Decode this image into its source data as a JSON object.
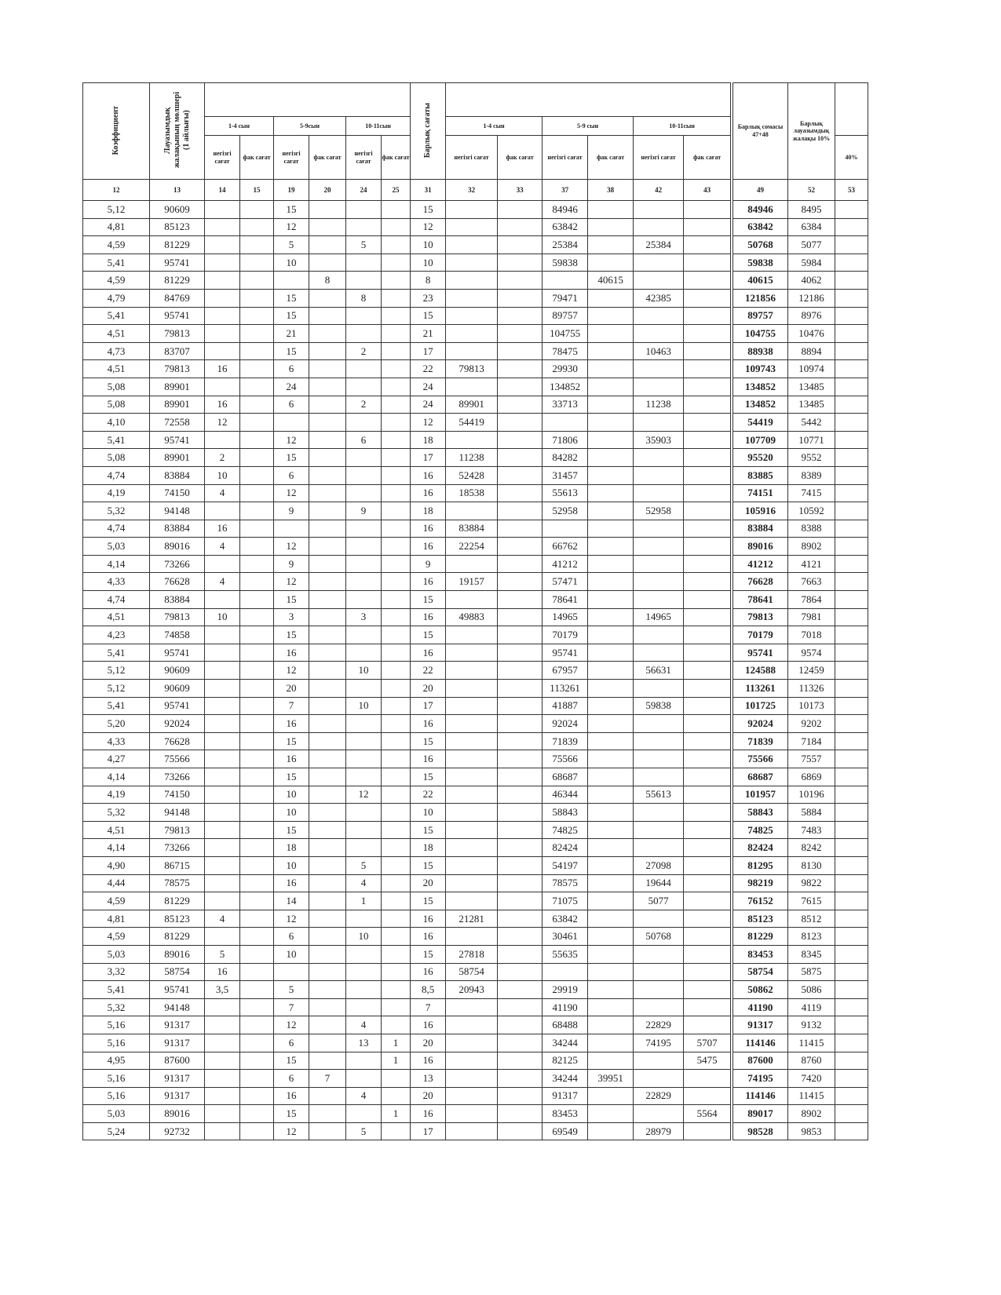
{
  "headers": {
    "coefficient": "Коэффициент",
    "salary": "Лауазымдық жалақының мөлшері (1 айлығы)",
    "grade_1_4": "1-4 сын",
    "grade_5_9": "5-9сын",
    "grade_10_11": "10-11сын",
    "base_hours": "негізгі сағат",
    "fact_hours": "фак сағат",
    "total_hours": "Барлық сағаты",
    "sum_grade_1_4": "1-4 сын",
    "sum_grade_5_9": "5-9 сын",
    "sum_grade_10_11": "10-11сын",
    "total_sum": "Барлық сомасы 47+48",
    "total_salary": "Барлық лауазымдық жалақы 10%",
    "percent_40": "40%"
  },
  "column_numbers": [
    12,
    13,
    14,
    15,
    19,
    20,
    24,
    25,
    31,
    32,
    33,
    37,
    38,
    42,
    43,
    49,
    52,
    53
  ],
  "rows": [
    [
      "5,12",
      90609,
      null,
      null,
      15,
      null,
      null,
      null,
      15,
      null,
      null,
      84946,
      null,
      null,
      null,
      84946,
      8495,
      null
    ],
    [
      "4,81",
      85123,
      null,
      null,
      12,
      null,
      null,
      null,
      12,
      null,
      null,
      63842,
      null,
      null,
      null,
      63842,
      6384,
      null
    ],
    [
      "4,59",
      81229,
      null,
      null,
      5,
      null,
      5,
      null,
      10,
      null,
      null,
      25384,
      null,
      25384,
      null,
      50768,
      5077,
      null
    ],
    [
      "5,41",
      95741,
      null,
      null,
      10,
      null,
      null,
      null,
      10,
      null,
      null,
      59838,
      null,
      null,
      null,
      59838,
      5984,
      null
    ],
    [
      "4,59",
      81229,
      null,
      null,
      null,
      8,
      null,
      null,
      8,
      null,
      null,
      null,
      40615,
      null,
      null,
      40615,
      4062,
      null
    ],
    [
      "4,79",
      84769,
      null,
      null,
      15,
      null,
      8,
      null,
      23,
      null,
      null,
      79471,
      null,
      42385,
      null,
      121856,
      12186,
      null
    ],
    [
      "5,41",
      95741,
      null,
      null,
      15,
      null,
      null,
      null,
      15,
      null,
      null,
      89757,
      null,
      null,
      null,
      89757,
      8976,
      null
    ],
    [
      "4,51",
      79813,
      null,
      null,
      21,
      null,
      null,
      null,
      21,
      null,
      null,
      104755,
      null,
      null,
      null,
      104755,
      10476,
      null
    ],
    [
      "4,73",
      83707,
      null,
      null,
      15,
      null,
      2,
      null,
      17,
      null,
      null,
      78475,
      null,
      10463,
      null,
      88938,
      8894,
      null
    ],
    [
      "4,51",
      79813,
      16,
      null,
      6,
      null,
      null,
      null,
      22,
      79813,
      null,
      29930,
      null,
      null,
      null,
      109743,
      10974,
      null
    ],
    [
      "5,08",
      89901,
      null,
      null,
      24,
      null,
      null,
      null,
      24,
      null,
      null,
      134852,
      null,
      null,
      null,
      134852,
      13485,
      null
    ],
    [
      "5,08",
      89901,
      16,
      null,
      6,
      null,
      2,
      null,
      24,
      89901,
      null,
      33713,
      null,
      11238,
      null,
      134852,
      13485,
      null
    ],
    [
      "4,10",
      72558,
      12,
      null,
      null,
      null,
      null,
      null,
      12,
      54419,
      null,
      null,
      null,
      null,
      null,
      54419,
      5442,
      null
    ],
    [
      "5,41",
      95741,
      null,
      null,
      12,
      null,
      6,
      null,
      18,
      null,
      null,
      71806,
      null,
      35903,
      null,
      107709,
      10771,
      null
    ],
    [
      "5,08",
      89901,
      2,
      null,
      15,
      null,
      null,
      null,
      17,
      11238,
      null,
      84282,
      null,
      null,
      null,
      95520,
      9552,
      null
    ],
    [
      "4,74",
      83884,
      10,
      null,
      6,
      null,
      null,
      null,
      16,
      52428,
      null,
      31457,
      null,
      null,
      null,
      83885,
      8389,
      null
    ],
    [
      "4,19",
      74150,
      4,
      null,
      12,
      null,
      null,
      null,
      16,
      18538,
      null,
      55613,
      null,
      null,
      null,
      74151,
      7415,
      null
    ],
    [
      "5,32",
      94148,
      null,
      null,
      9,
      null,
      9,
      null,
      18,
      null,
      null,
      52958,
      null,
      52958,
      null,
      105916,
      10592,
      null
    ],
    [
      "4,74",
      83884,
      16,
      null,
      null,
      null,
      null,
      null,
      16,
      83884,
      null,
      null,
      null,
      null,
      null,
      83884,
      8388,
      null
    ],
    [
      "5,03",
      89016,
      4,
      null,
      12,
      null,
      null,
      null,
      16,
      22254,
      null,
      66762,
      null,
      null,
      null,
      89016,
      8902,
      null
    ],
    [
      "4,14",
      73266,
      null,
      null,
      9,
      null,
      null,
      null,
      9,
      null,
      null,
      41212,
      null,
      null,
      null,
      41212,
      4121,
      null
    ],
    [
      "4,33",
      76628,
      4,
      null,
      12,
      null,
      null,
      null,
      16,
      19157,
      null,
      57471,
      null,
      null,
      null,
      76628,
      7663,
      null
    ],
    [
      "4,74",
      83884,
      null,
      null,
      15,
      null,
      null,
      null,
      15,
      null,
      null,
      78641,
      null,
      null,
      null,
      78641,
      7864,
      null
    ],
    [
      "4,51",
      79813,
      10,
      null,
      3,
      null,
      3,
      null,
      16,
      49883,
      null,
      14965,
      null,
      14965,
      null,
      79813,
      7981,
      null
    ],
    [
      "4,23",
      74858,
      null,
      null,
      15,
      null,
      null,
      null,
      15,
      null,
      null,
      70179,
      null,
      null,
      null,
      70179,
      7018,
      null
    ],
    [
      "5,41",
      95741,
      null,
      null,
      16,
      null,
      null,
      null,
      16,
      null,
      null,
      95741,
      null,
      null,
      null,
      95741,
      9574,
      null
    ],
    [
      "5,12",
      90609,
      null,
      null,
      12,
      null,
      10,
      null,
      22,
      null,
      null,
      67957,
      null,
      56631,
      null,
      124588,
      12459,
      null
    ],
    [
      "5,12",
      90609,
      null,
      null,
      20,
      null,
      null,
      null,
      20,
      null,
      null,
      113261,
      null,
      null,
      null,
      113261,
      11326,
      null
    ],
    [
      "5,41",
      95741,
      null,
      null,
      7,
      null,
      10,
      null,
      17,
      null,
      null,
      41887,
      null,
      59838,
      null,
      101725,
      10173,
      null
    ],
    [
      "5,20",
      92024,
      null,
      null,
      16,
      null,
      null,
      null,
      16,
      null,
      null,
      92024,
      null,
      null,
      null,
      92024,
      9202,
      null
    ],
    [
      "4,33",
      76628,
      null,
      null,
      15,
      null,
      null,
      null,
      15,
      null,
      null,
      71839,
      null,
      null,
      null,
      71839,
      7184,
      null
    ],
    [
      "4,27",
      75566,
      null,
      null,
      16,
      null,
      null,
      null,
      16,
      null,
      null,
      75566,
      null,
      null,
      null,
      75566,
      7557,
      null
    ],
    [
      "4,14",
      73266,
      null,
      null,
      15,
      null,
      null,
      null,
      15,
      null,
      null,
      68687,
      null,
      null,
      null,
      68687,
      6869,
      null
    ],
    [
      "4,19",
      74150,
      null,
      null,
      10,
      null,
      12,
      null,
      22,
      null,
      null,
      46344,
      null,
      55613,
      null,
      101957,
      10196,
      null
    ],
    [
      "5,32",
      94148,
      null,
      null,
      10,
      null,
      null,
      null,
      10,
      null,
      null,
      58843,
      null,
      null,
      null,
      58843,
      5884,
      null
    ],
    [
      "4,51",
      79813,
      null,
      null,
      15,
      null,
      null,
      null,
      15,
      null,
      null,
      74825,
      null,
      null,
      null,
      74825,
      7483,
      null
    ],
    [
      "4,14",
      73266,
      null,
      null,
      18,
      null,
      null,
      null,
      18,
      null,
      null,
      82424,
      null,
      null,
      null,
      82424,
      8242,
      null
    ],
    [
      "4,90",
      86715,
      null,
      null,
      10,
      null,
      5,
      null,
      15,
      null,
      null,
      54197,
      null,
      27098,
      null,
      81295,
      8130,
      null
    ],
    [
      "4,44",
      78575,
      null,
      null,
      16,
      null,
      4,
      null,
      20,
      null,
      null,
      78575,
      null,
      19644,
      null,
      98219,
      9822,
      null
    ],
    [
      "4,59",
      81229,
      null,
      null,
      14,
      null,
      1,
      null,
      15,
      null,
      null,
      71075,
      null,
      5077,
      null,
      76152,
      7615,
      null
    ],
    [
      "4,81",
      85123,
      4,
      null,
      12,
      null,
      null,
      null,
      16,
      21281,
      null,
      63842,
      null,
      null,
      null,
      85123,
      8512,
      null
    ],
    [
      "4,59",
      81229,
      null,
      null,
      6,
      null,
      10,
      null,
      16,
      null,
      null,
      30461,
      null,
      50768,
      null,
      81229,
      8123,
      null
    ],
    [
      "5,03",
      89016,
      5,
      null,
      10,
      null,
      null,
      null,
      15,
      27818,
      null,
      55635,
      null,
      null,
      null,
      83453,
      8345,
      null
    ],
    [
      "3,32",
      58754,
      16,
      null,
      null,
      null,
      null,
      null,
      16,
      58754,
      null,
      null,
      null,
      null,
      null,
      58754,
      5875,
      null
    ],
    [
      "5,41",
      95741,
      "3,5",
      null,
      5,
      null,
      null,
      null,
      "8,5",
      20943,
      null,
      29919,
      null,
      null,
      null,
      50862,
      5086,
      null
    ],
    [
      "5,32",
      94148,
      null,
      null,
      7,
      null,
      null,
      null,
      7,
      null,
      null,
      41190,
      null,
      null,
      null,
      41190,
      4119,
      null
    ],
    [
      "5,16",
      91317,
      null,
      null,
      12,
      null,
      4,
      null,
      16,
      null,
      null,
      68488,
      null,
      22829,
      null,
      91317,
      9132,
      null
    ],
    [
      "5,16",
      91317,
      null,
      null,
      6,
      null,
      13,
      1,
      20,
      null,
      null,
      34244,
      null,
      74195,
      5707,
      114146,
      11415,
      null
    ],
    [
      "4,95",
      87600,
      null,
      null,
      15,
      null,
      null,
      1,
      16,
      null,
      null,
      82125,
      null,
      null,
      5475,
      87600,
      8760,
      null
    ],
    [
      "5,16",
      91317,
      null,
      null,
      6,
      7,
      null,
      null,
      13,
      null,
      null,
      34244,
      39951,
      null,
      null,
      74195,
      7420,
      null
    ],
    [
      "5,16",
      91317,
      null,
      null,
      16,
      null,
      4,
      null,
      20,
      null,
      null,
      91317,
      null,
      22829,
      null,
      114146,
      11415,
      null
    ],
    [
      "5,03",
      89016,
      null,
      null,
      15,
      null,
      null,
      1,
      16,
      null,
      null,
      83453,
      null,
      null,
      5564,
      89017,
      8902,
      null
    ],
    [
      "5,24",
      92732,
      null,
      null,
      12,
      null,
      5,
      null,
      17,
      null,
      null,
      69549,
      null,
      28979,
      null,
      98528,
      9853,
      null
    ]
  ]
}
